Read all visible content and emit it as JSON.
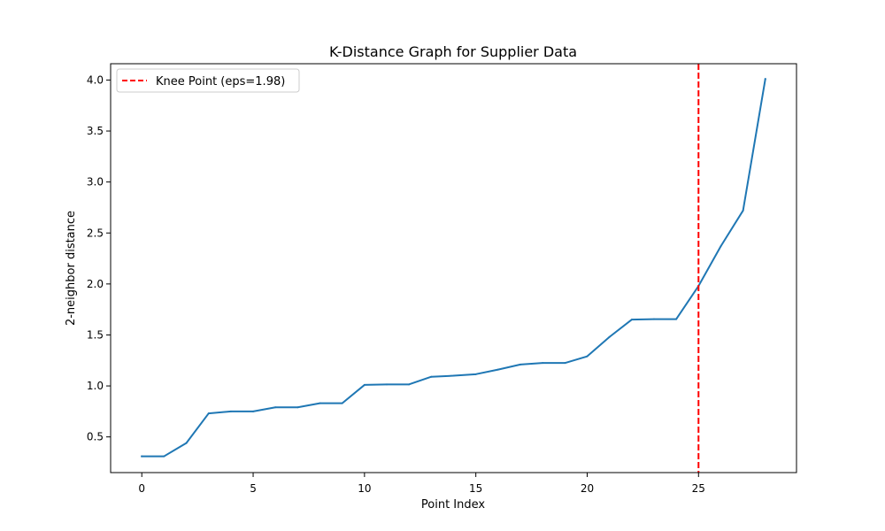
{
  "chart_data": {
    "type": "line",
    "title": "K-Distance Graph for Supplier Data",
    "xlabel": "Point Index",
    "ylabel": "2-neighbor distance",
    "xlim": [
      -1.4,
      29.4
    ],
    "ylim": [
      0.15,
      4.16
    ],
    "xticks": [
      0,
      5,
      10,
      15,
      20,
      25
    ],
    "xtick_labels": [
      "0",
      "5",
      "10",
      "15",
      "20",
      "25"
    ],
    "yticks": [
      0.5,
      1.0,
      1.5,
      2.0,
      2.5,
      3.0,
      3.5,
      4.0
    ],
    "ytick_labels": [
      "0.5",
      "1.0",
      "1.5",
      "2.0",
      "2.5",
      "3.0",
      "3.5",
      "4.0"
    ],
    "grid": false,
    "legend_position": "upper-left",
    "series": [
      {
        "color": "#1f77b4",
        "x": [
          0,
          1,
          2,
          3,
          4,
          5,
          6,
          7,
          8,
          9,
          10,
          11,
          12,
          13,
          14,
          15,
          16,
          17,
          18,
          19,
          20,
          21,
          22,
          23,
          24,
          25,
          26,
          27,
          28
        ],
        "values": [
          0.31,
          0.31,
          0.44,
          0.73,
          0.75,
          0.75,
          0.79,
          0.79,
          0.83,
          0.83,
          1.01,
          1.015,
          1.015,
          1.09,
          1.1,
          1.115,
          1.16,
          1.21,
          1.225,
          1.225,
          1.29,
          1.48,
          1.65,
          1.655,
          1.655,
          1.98,
          2.37,
          2.72,
          4.01
        ]
      }
    ],
    "reference_line": {
      "orientation": "vertical",
      "x": 25,
      "color": "#ff0000",
      "style": "dashed",
      "label": "Knee Point (eps=1.98)"
    }
  }
}
